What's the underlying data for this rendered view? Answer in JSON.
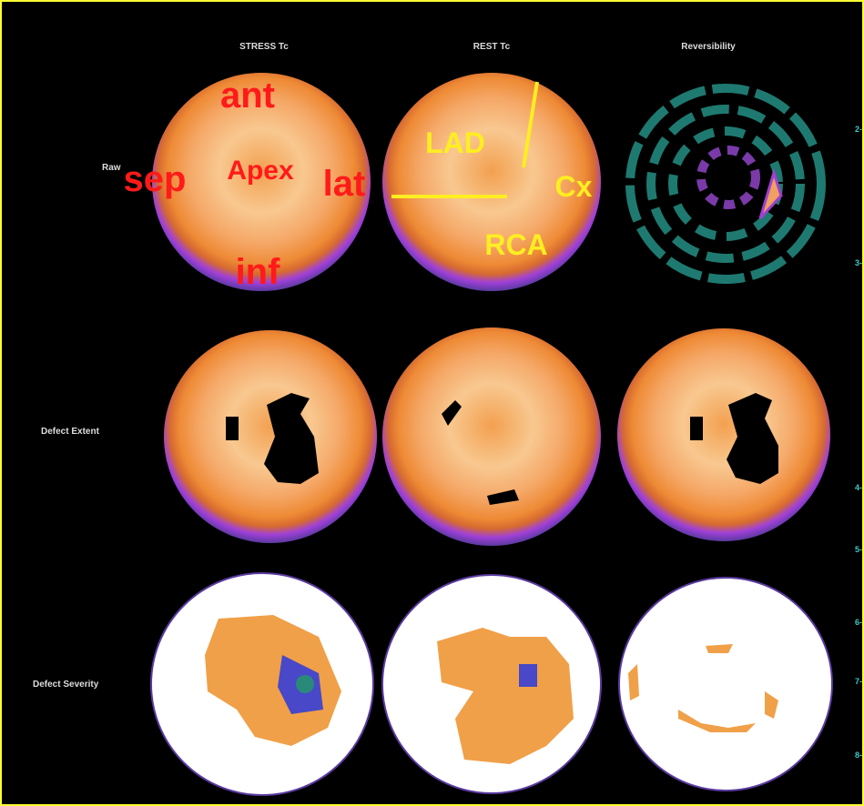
{
  "columns": {
    "stress": "STRESS Tc",
    "rest": "REST Tc",
    "reversibility": "Reversibility"
  },
  "rows": {
    "raw": "Raw",
    "extent": "Defect Extent",
    "severity": "Defect Severity"
  },
  "annotations": {
    "ant": "ant",
    "sep": "sep",
    "apex": "Apex",
    "lat": "lat",
    "inf": "inf",
    "lad": "LAD",
    "cx": "Cx",
    "rca": "RCA"
  },
  "scale": [
    "2-",
    "3-",
    "4-",
    "5-",
    "6-",
    "7-",
    "8-"
  ]
}
